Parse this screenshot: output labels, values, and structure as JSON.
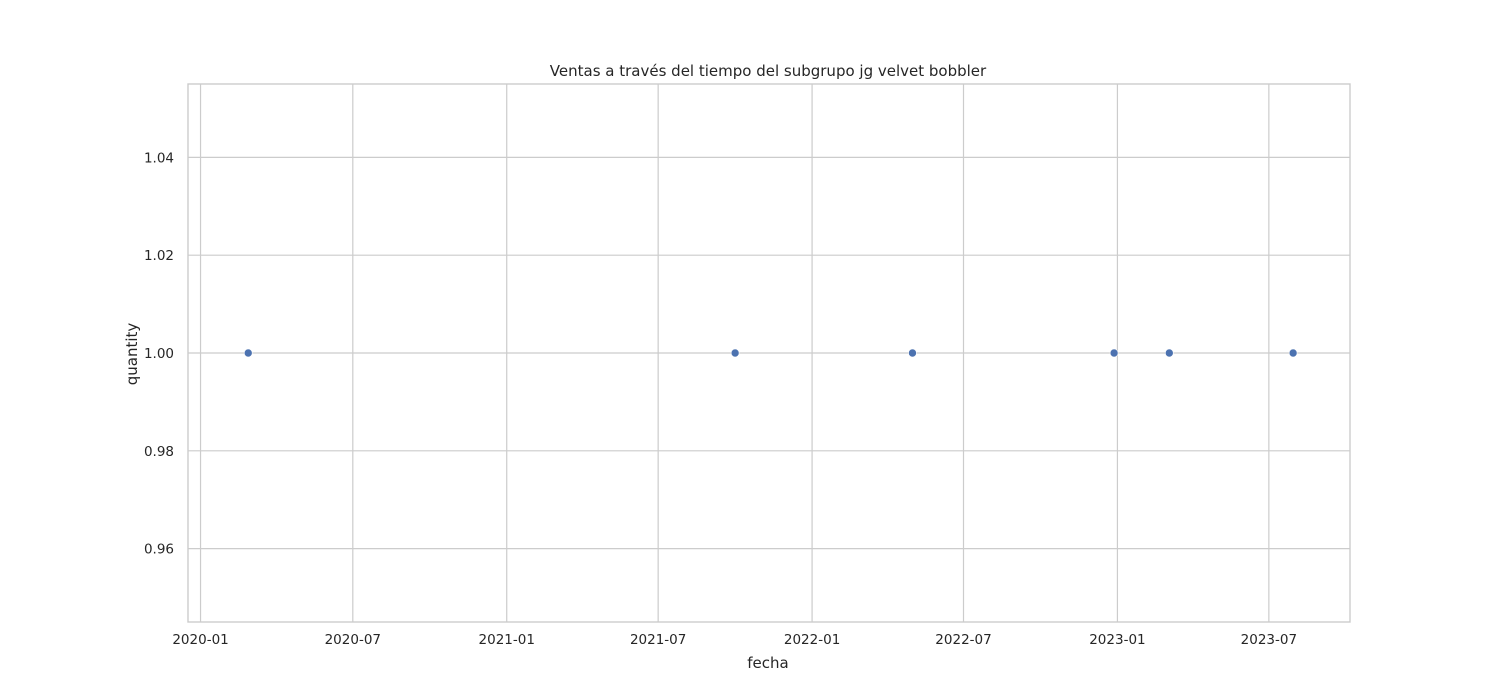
{
  "chart_data": {
    "type": "scatter",
    "title": "Ventas a través del tiempo del subgrupo jg velvet bobbler",
    "xlabel": "fecha",
    "ylabel": "quantity",
    "x_type": "date",
    "xlim": [
      "2019-12-17",
      "2023-10-06"
    ],
    "ylim": [
      0.945,
      1.055
    ],
    "x_ticks": [
      "2020-01",
      "2020-07",
      "2021-01",
      "2021-07",
      "2022-01",
      "2022-07",
      "2023-01",
      "2023-07"
    ],
    "y_ticks": [
      0.96,
      0.98,
      1.0,
      1.02,
      1.04
    ],
    "y_tick_labels": [
      "0.96",
      "0.98",
      "1.00",
      "1.02",
      "1.04"
    ],
    "grid": true,
    "marker_color": "#4c72b0",
    "points": [
      {
        "x": "2020-02-27",
        "y": 1.0
      },
      {
        "x": "2021-10-01",
        "y": 1.0
      },
      {
        "x": "2022-05-01",
        "y": 1.0
      },
      {
        "x": "2022-12-28",
        "y": 1.0
      },
      {
        "x": "2023-03-04",
        "y": 1.0
      },
      {
        "x": "2023-07-30",
        "y": 1.0
      }
    ]
  }
}
